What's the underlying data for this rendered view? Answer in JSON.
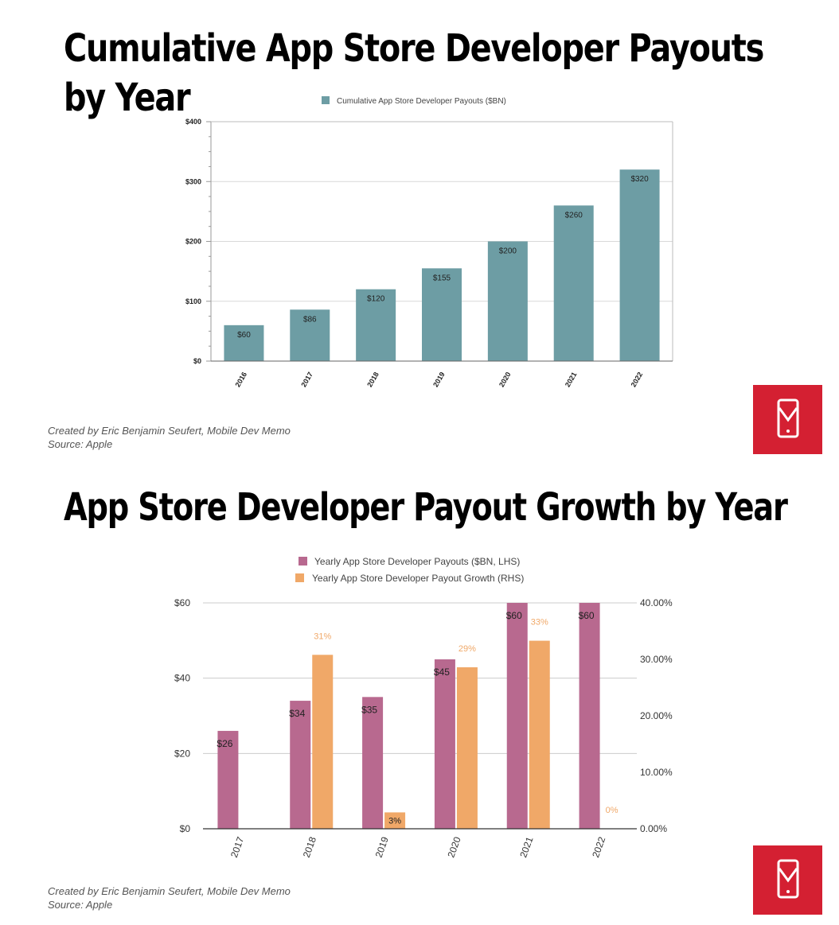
{
  "panel1": {
    "title": "Cumulative App Store Developer Payouts by Year",
    "credit_line1": "Created by Eric Benjamin Seufert, Mobile Dev Memo",
    "credit_line2": "Source: Apple"
  },
  "panel2": {
    "title": "App Store Developer Payout Growth by Year",
    "credit_line1": "Created by Eric Benjamin Seufert, Mobile Dev Memo",
    "credit_line2": "Source: Apple"
  },
  "logo_icon": "phone-envelope-icon",
  "colors": {
    "teal": "#6d9da4",
    "magenta": "#b8698f",
    "orange": "#f0a868",
    "logo_red": "#d42032"
  },
  "chart_data": [
    {
      "type": "bar",
      "categories": [
        "2016",
        "2017",
        "2018",
        "2019",
        "2020",
        "2021",
        "2022"
      ],
      "series": [
        {
          "name": "Cumulative App Store Developer Payouts ($BN)",
          "values": [
            60,
            86,
            120,
            155,
            200,
            260,
            320
          ]
        }
      ],
      "data_labels": [
        "$60",
        "$86",
        "$120",
        "$155",
        "$200",
        "$260",
        "$320"
      ],
      "y_ticks": [
        "$0",
        "$100",
        "$200",
        "$300",
        "$400"
      ],
      "ylim": [
        0,
        400
      ],
      "grid": true,
      "legend_position": "top"
    },
    {
      "type": "bar",
      "categories": [
        "2017",
        "2018",
        "2019",
        "2020",
        "2021",
        "2022"
      ],
      "series": [
        {
          "name": "Yearly App Store Developer Payouts ($BN, LHS)",
          "axis": "left",
          "values": [
            26,
            34,
            35,
            45,
            60,
            60
          ],
          "data_labels": [
            "$26",
            "$34",
            "$35",
            "$45",
            "$60",
            "$60"
          ]
        },
        {
          "name": "Yearly App Store Developer Payout Growth (RHS)",
          "axis": "right",
          "values": [
            null,
            30.8,
            2.9,
            28.6,
            33.3,
            0
          ],
          "data_labels": [
            "",
            "31%",
            "3%",
            "29%",
            "33%",
            "0%"
          ]
        }
      ],
      "y_left_ticks": [
        "$0",
        "$20",
        "$40",
        "$60"
      ],
      "y_right_ticks": [
        "0.00%",
        "10.00%",
        "20.00%",
        "30.00%",
        "40.00%"
      ],
      "ylim_left": [
        0,
        60
      ],
      "ylim_right": [
        0,
        40
      ],
      "grid": true,
      "legend_position": "top"
    }
  ]
}
